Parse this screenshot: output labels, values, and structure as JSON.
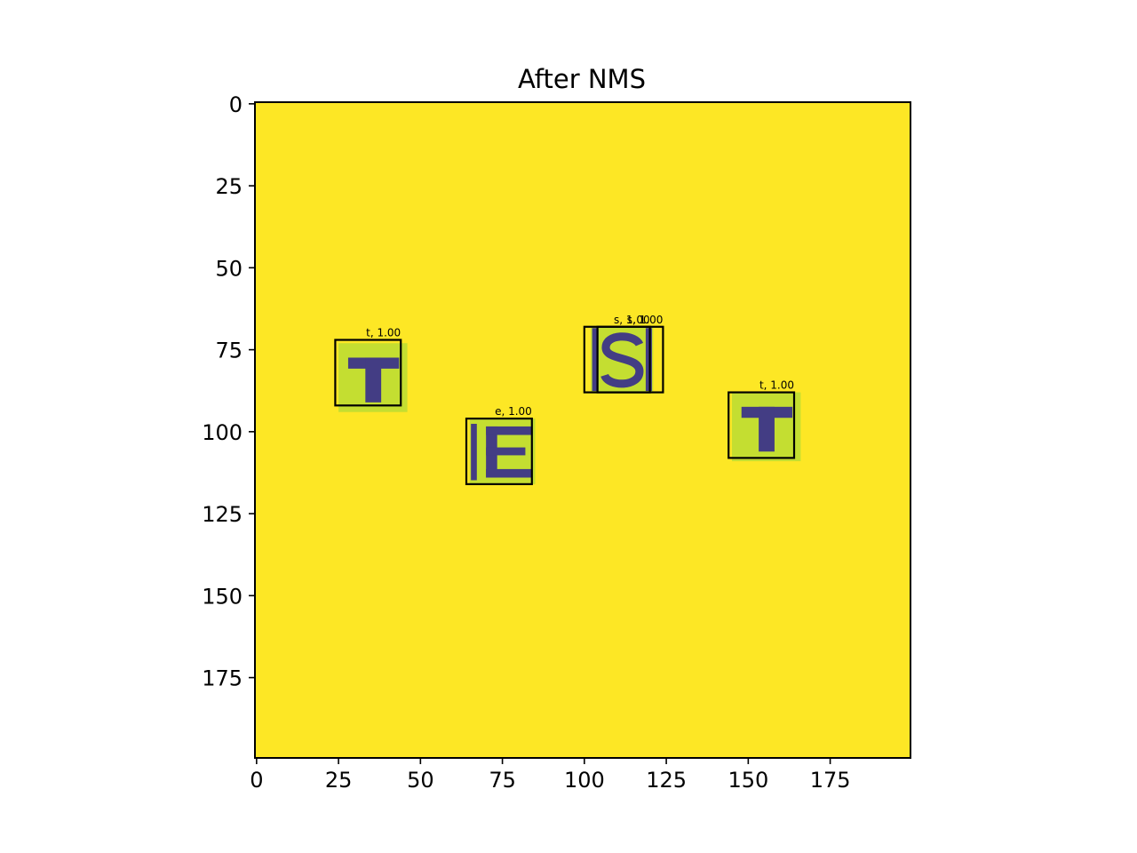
{
  "chart_data": {
    "type": "image",
    "title": "After NMS",
    "xlabel": "",
    "ylabel": "",
    "xlim": [
      -0.5,
      199.5
    ],
    "ylim": [
      199.5,
      -0.5
    ],
    "x_ticks": [
      0,
      25,
      50,
      75,
      100,
      125,
      150,
      175
    ],
    "y_ticks": [
      0,
      25,
      50,
      75,
      100,
      125,
      150,
      175
    ],
    "grid": false,
    "background_color": "#fde725",
    "letter_color": "#433d84",
    "patch_color": "#c4de31",
    "patches": [
      {
        "letter": "T",
        "x0": 25,
        "y0": 73,
        "x1": 46,
        "y1": 94
      },
      {
        "letter": "E",
        "x0": 65,
        "y0": 96,
        "x1": 85,
        "y1": 116
      },
      {
        "letter": "S",
        "x0": 102,
        "y0": 68,
        "x1": 121,
        "y1": 88
      },
      {
        "letter": "T",
        "x0": 145,
        "y0": 88,
        "x1": 166,
        "y1": 109
      }
    ],
    "boxes": [
      {
        "label": "t, 1.00",
        "class": "t",
        "score": 1.0,
        "x0": 24,
        "y0": 72,
        "x1": 44,
        "y1": 92
      },
      {
        "label": "e, 1.00",
        "class": "e",
        "score": 1.0,
        "x0": 64,
        "y0": 96,
        "x1": 84,
        "y1": 116
      },
      {
        "label": "s, 1.00",
        "class": "s",
        "score": 1.0,
        "x0": 100,
        "y0": 68,
        "x1": 120,
        "y1": 88
      },
      {
        "label": "s, 1.00",
        "class": "s",
        "score": 1.0,
        "x0": 104,
        "y0": 68,
        "x1": 124,
        "y1": 88
      },
      {
        "label": "t, 1.00",
        "class": "t",
        "score": 1.0,
        "x0": 144,
        "y0": 88,
        "x1": 164,
        "y1": 108
      }
    ]
  }
}
